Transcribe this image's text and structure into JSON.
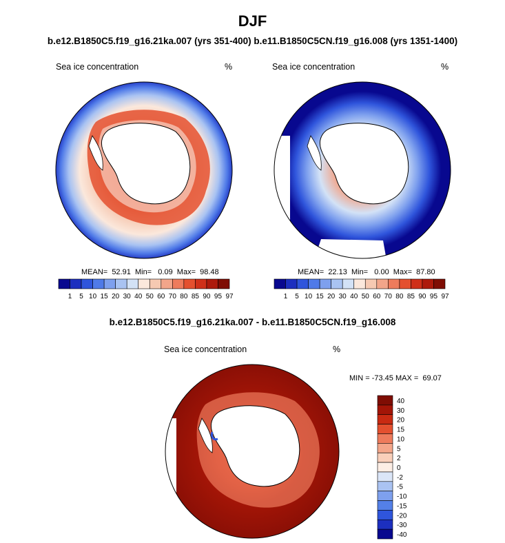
{
  "title": "DJF",
  "subtitle": "b.e12.B1850C5.f19_g16.21ka.007 (yrs 351-400) b.e11.B1850C5CN.f19_g16.008 (yrs 1351-1400)",
  "panels": [
    {
      "field_label": "Sea ice concentration",
      "units": "%",
      "stats": "MEAN=  52.91  Min=   0.09  Max=  98.48",
      "colorbar_labels": [
        "1",
        "5",
        "10",
        "15",
        "20",
        "30",
        "40",
        "50",
        "60",
        "70",
        "80",
        "85",
        "90",
        "95",
        "97"
      ]
    },
    {
      "field_label": "Sea ice concentration",
      "units": "%",
      "stats": "MEAN=  22.13  Min=   0.00  Max=  87.80",
      "colorbar_labels": [
        "1",
        "5",
        "10",
        "15",
        "20",
        "30",
        "40",
        "50",
        "60",
        "70",
        "80",
        "85",
        "90",
        "95",
        "97"
      ]
    }
  ],
  "diff_panel": {
    "title": "b.e12.B1850C5.f19_g16.21ka.007 - b.e11.B1850C5CN.f19_g16.008",
    "field_label": "Sea ice concentration",
    "units": "%",
    "minmax": "MIN = -73.45 MAX =  69.07",
    "colorbar_labels": [
      "40",
      "30",
      "20",
      "15",
      "10",
      "5",
      "2",
      "0",
      "-2",
      "-5",
      "-10",
      "-15",
      "-20",
      "-30",
      "-40"
    ]
  },
  "colors": {
    "abs_scale": [
      "#08088f",
      "#1c2fbf",
      "#2f55dc",
      "#4f7ae8",
      "#7ea0ee",
      "#a9c3f2",
      "#d3e2f6",
      "#fbe8dc",
      "#f6c9b2",
      "#f2a58a",
      "#ee7b5c",
      "#e4502f",
      "#cf3019",
      "#ad1a0c",
      "#7f0d04"
    ],
    "diff_scale": [
      "#7f0d04",
      "#a31507",
      "#c92a12",
      "#e4502f",
      "#ee7b5c",
      "#f4a68a",
      "#f9cfba",
      "#fdeee5",
      "#dbe6f8",
      "#aac3f2",
      "#7ea0ee",
      "#5480e8",
      "#2f55dc",
      "#1c2fbf",
      "#08088f"
    ]
  }
}
